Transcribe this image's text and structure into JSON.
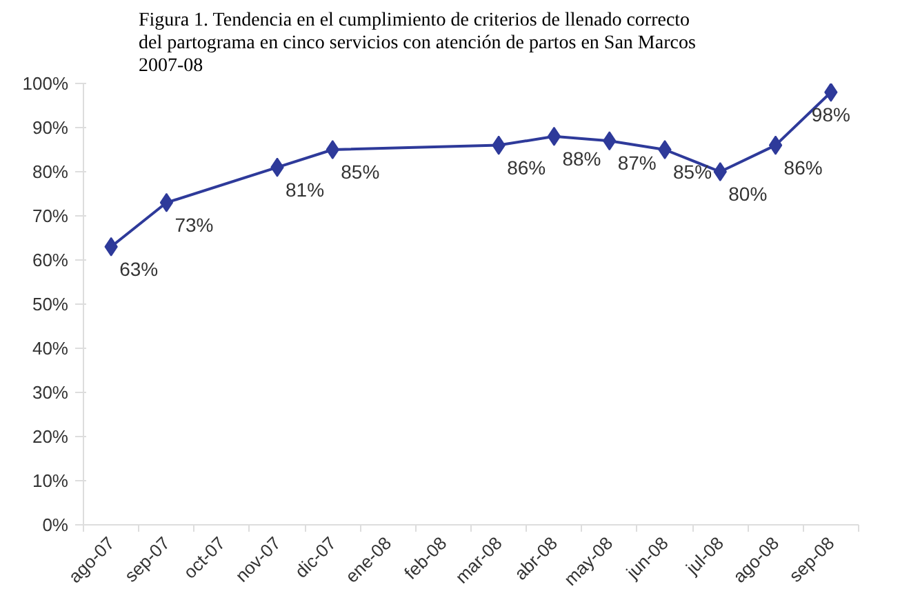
{
  "chart_data": {
    "type": "line",
    "title": "Figura 1. Tendencia en el cumplimiento de criterios de llenado correcto del partograma en cinco servicios con atención de partos en San Marcos 2007-08",
    "categories": [
      "ago-07",
      "sep-07",
      "oct-07",
      "nov-07",
      "dic-07",
      "ene-08",
      "feb-08",
      "mar-08",
      "abr-08",
      "may-08",
      "jun-08",
      "jul-08",
      "ago-08",
      "sep-08"
    ],
    "series": [
      {
        "color": "#2e3a9a",
        "values": [
          63,
          73,
          null,
          81,
          85,
          null,
          null,
          86,
          88,
          87,
          85,
          80,
          86,
          98
        ],
        "value_labels": [
          "63%",
          "73%",
          null,
          "81%",
          "85%",
          null,
          null,
          "86%",
          "88%",
          "87%",
          "85%",
          "80%",
          "86%",
          "98%"
        ]
      }
    ],
    "ylim": [
      0,
      100
    ],
    "yticks": [
      {
        "value": 0,
        "label": "0%"
      },
      {
        "value": 10,
        "label": "10%"
      },
      {
        "value": 20,
        "label": "20%"
      },
      {
        "value": 30,
        "label": "30%"
      },
      {
        "value": 40,
        "label": "40%"
      },
      {
        "value": 50,
        "label": "50%"
      },
      {
        "value": 60,
        "label": "60%"
      },
      {
        "value": 70,
        "label": "70%"
      },
      {
        "value": 80,
        "label": "80%"
      },
      {
        "value": 90,
        "label": "90%"
      },
      {
        "value": 100,
        "label": "100%"
      }
    ],
    "marker": "diamond",
    "line_style": "solid",
    "grid": false
  }
}
